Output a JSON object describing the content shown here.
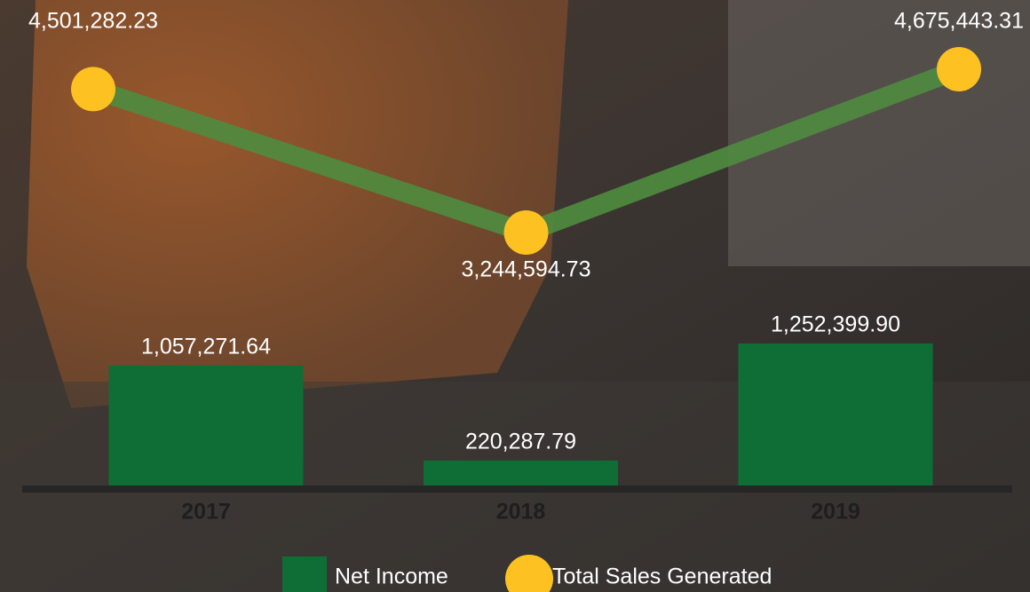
{
  "chart_data": {
    "type": "bar-line",
    "categories": [
      "2017",
      "2018",
      "2019"
    ],
    "series": [
      {
        "name": "Net Income",
        "type": "bar",
        "color": "#0e6e36",
        "values": [
          1057271.64,
          220287.79,
          1252399.9
        ],
        "value_labels": [
          "1,057,271.64",
          "220,287.79",
          "1,252,399.90"
        ]
      },
      {
        "name": "Total Sales Generated",
        "type": "line",
        "color": "#fdc221",
        "line_color": "#4f8c3f",
        "values": [
          4501282.23,
          3244594.73,
          4675443.31
        ],
        "value_labels": [
          "4,501,282.23",
          "3,244,594.73",
          "4,675,443.31"
        ]
      }
    ]
  }
}
